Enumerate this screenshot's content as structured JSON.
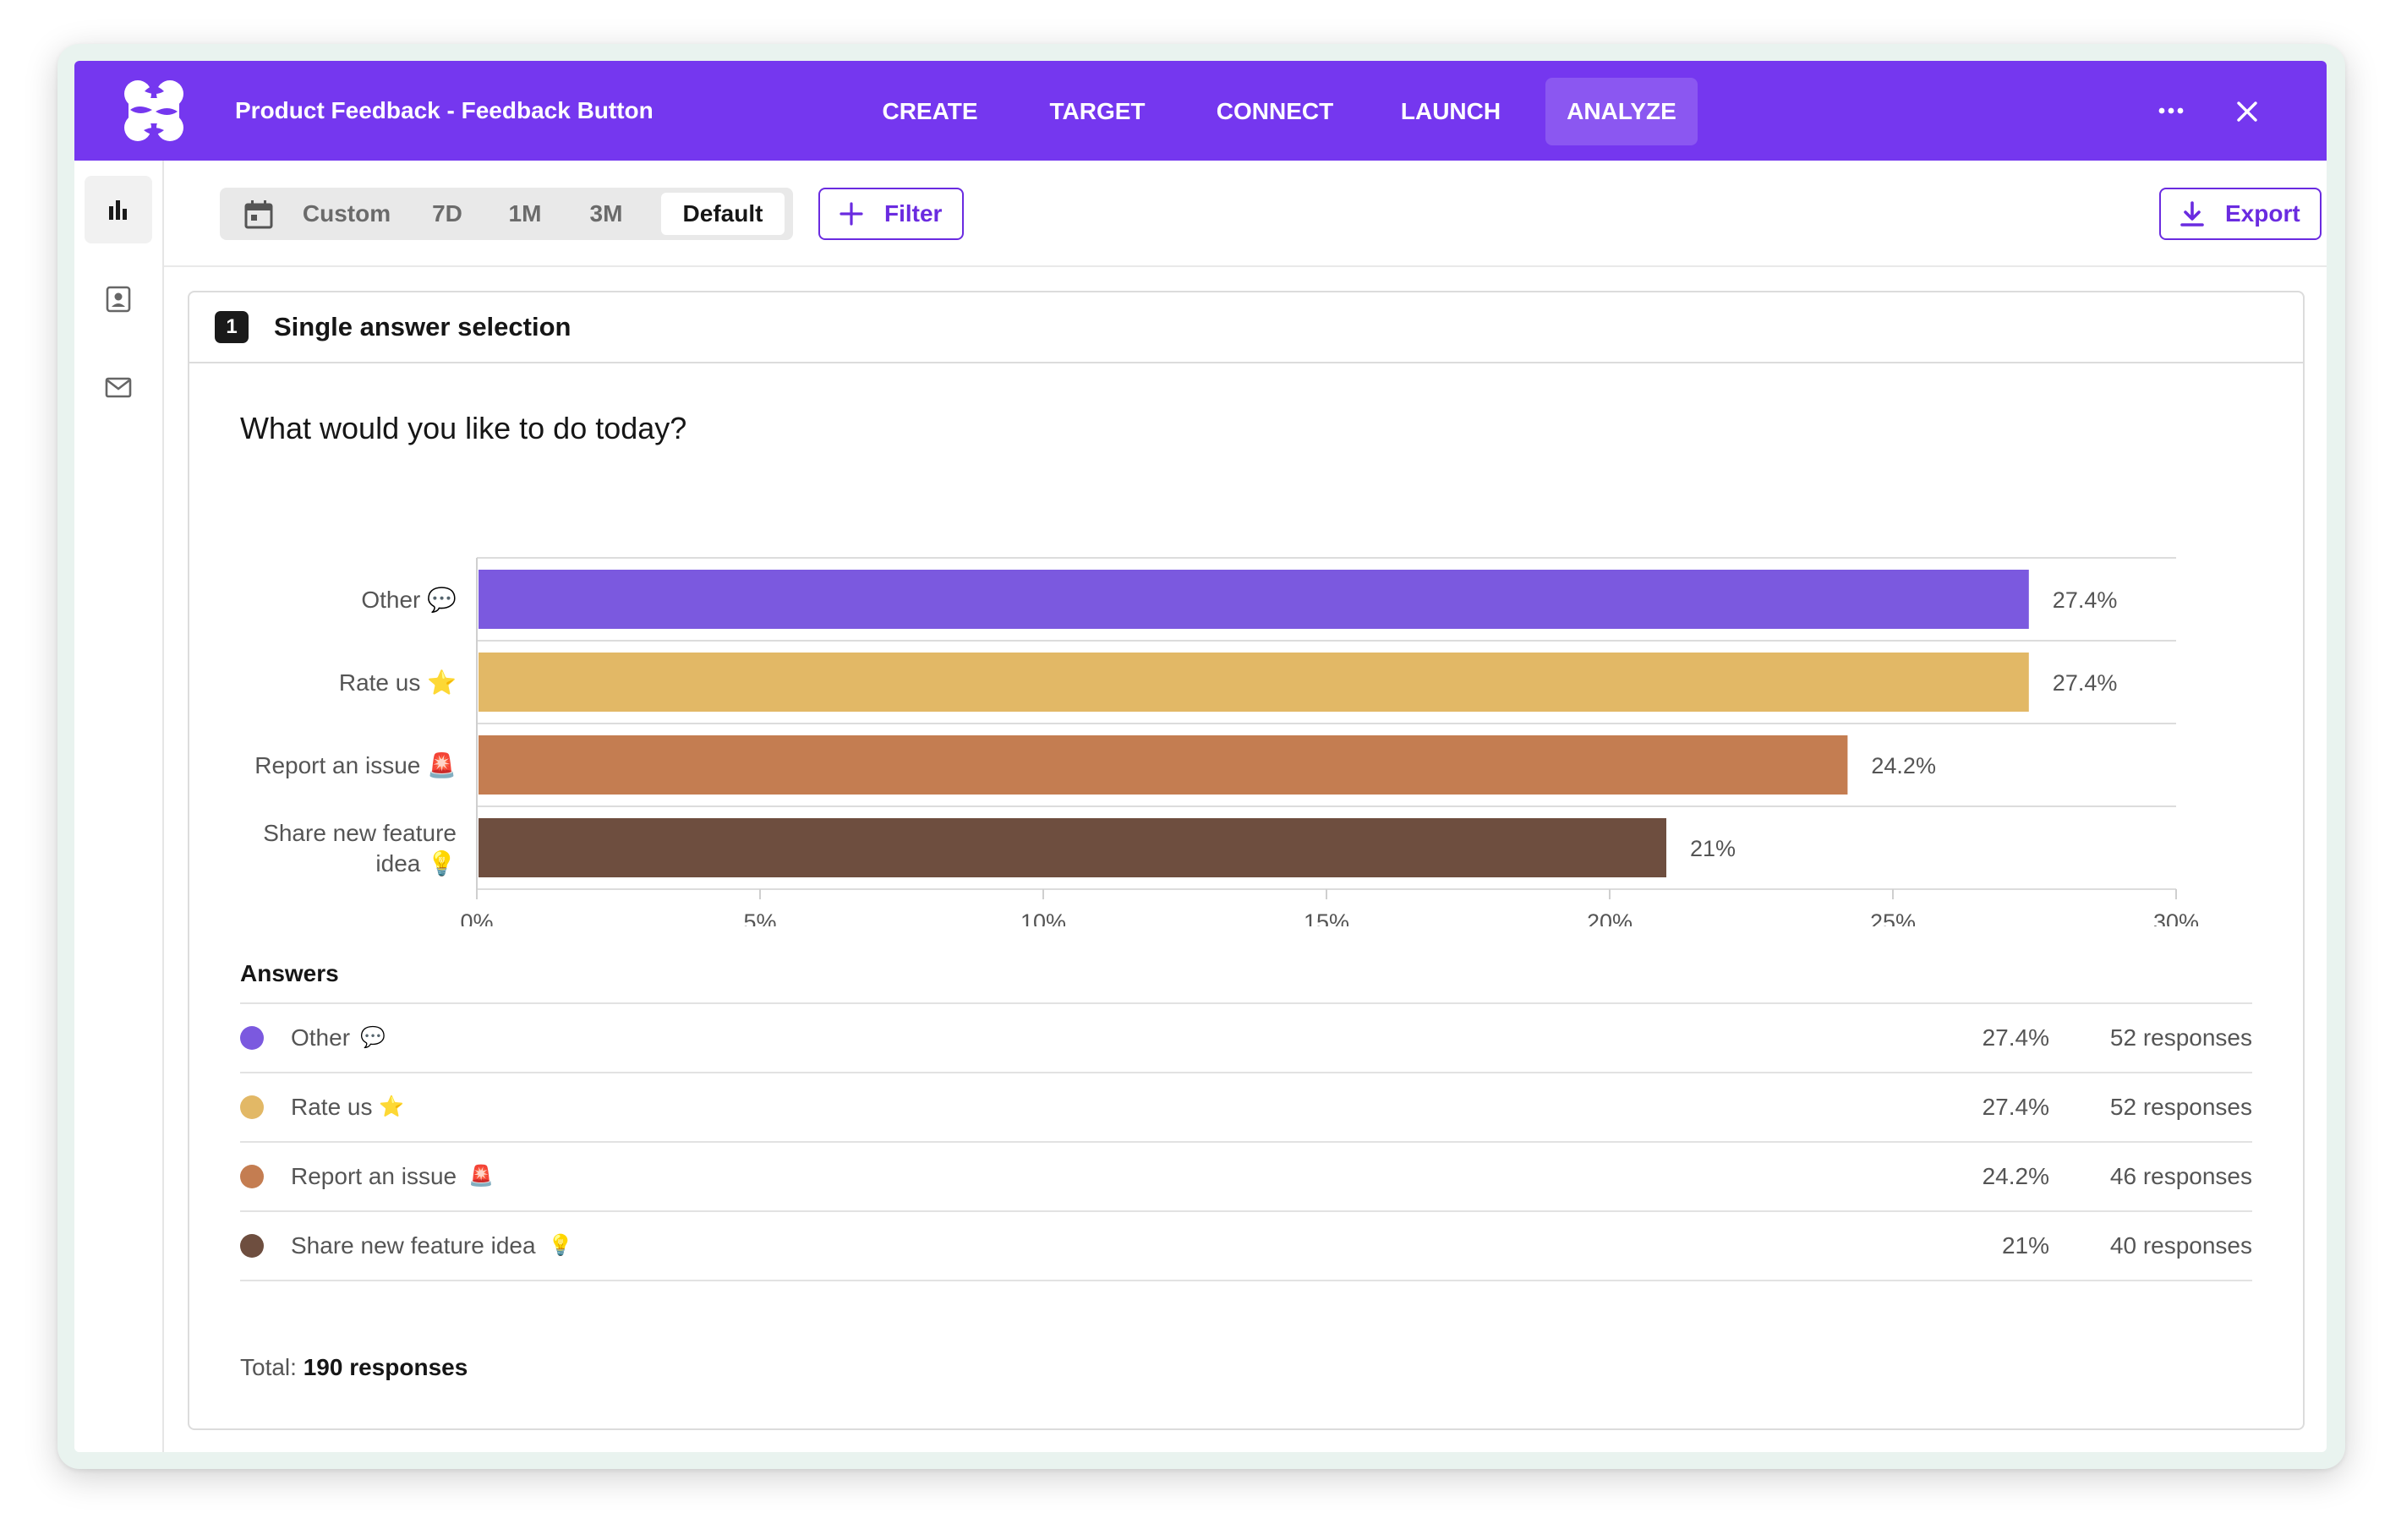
{
  "header": {
    "app_title": "Product Feedback - Feedback Button",
    "tabs": [
      {
        "label": "CREATE",
        "active": false
      },
      {
        "label": "TARGET",
        "active": false
      },
      {
        "label": "CONNECT",
        "active": false
      },
      {
        "label": "LAUNCH",
        "active": false
      },
      {
        "label": "ANALYZE",
        "active": true
      }
    ],
    "more_icon": "more-horizontal-icon",
    "close_icon": "close-icon",
    "brand_color": "#7537ef"
  },
  "sidebar": {
    "items": [
      {
        "icon": "bar-chart-icon",
        "active": true
      },
      {
        "icon": "contact-card-icon",
        "active": false
      },
      {
        "icon": "mail-icon",
        "active": false
      }
    ]
  },
  "toolbar": {
    "date_icon": "calendar-icon",
    "ranges": [
      {
        "label": "Custom",
        "active": false
      },
      {
        "label": "7D",
        "active": false
      },
      {
        "label": "1M",
        "active": false
      },
      {
        "label": "3M",
        "active": false
      },
      {
        "label": "Default",
        "active": true
      }
    ],
    "filter_label": "Filter",
    "export_label": "Export"
  },
  "question": {
    "number": "1",
    "type": "Single answer selection",
    "text": "What would you like to do today?"
  },
  "chart_data": {
    "type": "bar",
    "orientation": "horizontal",
    "categories": [
      "Other 💬",
      "Rate us ⭐",
      "Report an issue 🚨",
      "Share new feature idea 💡"
    ],
    "values": [
      27.4,
      27.4,
      24.2,
      21
    ],
    "value_labels": [
      "27.4%",
      "27.4%",
      "24.2%",
      "21%"
    ],
    "colors": [
      "#7b59df",
      "#e2b866",
      "#c47d51",
      "#6e4e3f"
    ],
    "xticks": [
      "0%",
      "5%",
      "10%",
      "15%",
      "20%",
      "25%",
      "30%"
    ],
    "xlim": [
      0,
      30
    ],
    "grid": true
  },
  "answers": {
    "title": "Answers",
    "rows": [
      {
        "label": "Other",
        "emoji": "💬",
        "pct": "27.4%",
        "responses": "52 responses",
        "color": "#7b59df"
      },
      {
        "label": "Rate us",
        "emoji": "⭐",
        "pct": "27.4%",
        "responses": "52 responses",
        "color": "#e2b866"
      },
      {
        "label": "Report an issue",
        "emoji": "🚨",
        "pct": "24.2%",
        "responses": "46 responses",
        "color": "#c47d51"
      },
      {
        "label": "Share new feature idea",
        "emoji": "💡",
        "pct": "21%",
        "responses": "40 responses",
        "color": "#6e4e3f"
      }
    ]
  },
  "total": {
    "label": "Total:",
    "value": "190 responses"
  }
}
